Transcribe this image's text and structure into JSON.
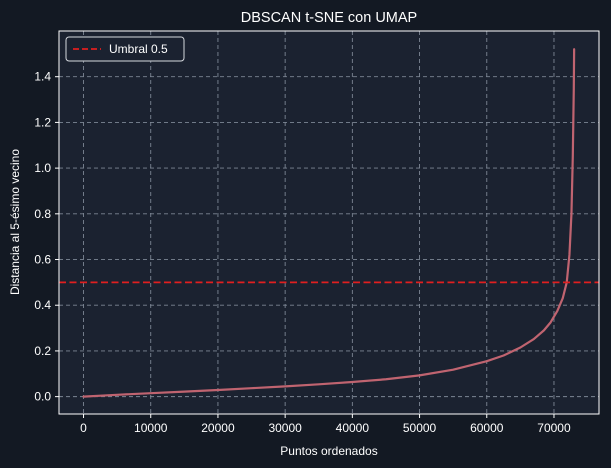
{
  "chart_data": {
    "type": "line",
    "title": "DBSCAN t-SNE con UMAP",
    "xlabel": "Puntos ordenados",
    "ylabel": "Distancia al 5-ésimo vecino",
    "xlim": [
      -3650,
      76700
    ],
    "ylim": [
      -0.076,
      1.6
    ],
    "xticks": [
      0,
      10000,
      20000,
      30000,
      40000,
      50000,
      60000,
      70000
    ],
    "xtick_labels": [
      "0",
      "10000",
      "20000",
      "30000",
      "40000",
      "50000",
      "60000",
      "70000"
    ],
    "yticks": [
      0.0,
      0.2,
      0.4,
      0.6,
      0.8,
      1.0,
      1.2,
      1.4
    ],
    "ytick_labels": [
      "0.0",
      "0.2",
      "0.4",
      "0.6",
      "0.8",
      "1.0",
      "1.2",
      "1.4"
    ],
    "grid": true,
    "legend_position": "top-left",
    "series": [
      {
        "x": [
          0,
          5000,
          10000,
          15000,
          20000,
          25000,
          30000,
          35000,
          40000,
          45000,
          50000,
          55000,
          60000,
          62500,
          65000,
          67000,
          68500,
          69500,
          70500,
          71300,
          71900,
          72300,
          72600,
          72800,
          72950,
          73000
        ],
        "values": [
          0.0,
          0.008,
          0.015,
          0.022,
          0.029,
          0.037,
          0.045,
          0.054,
          0.064,
          0.076,
          0.093,
          0.118,
          0.155,
          0.18,
          0.215,
          0.252,
          0.29,
          0.325,
          0.375,
          0.43,
          0.5,
          0.62,
          0.8,
          1.05,
          1.35,
          1.52
        ],
        "color": "#c06470"
      }
    ],
    "threshold": {
      "label": "Umbral 0.5",
      "value": 0.5,
      "color": "#e01f1f"
    }
  },
  "colors": {
    "background": "#131923",
    "plot_background": "#1b2230",
    "grid": "#7d8694",
    "axes": "#ffffff"
  }
}
